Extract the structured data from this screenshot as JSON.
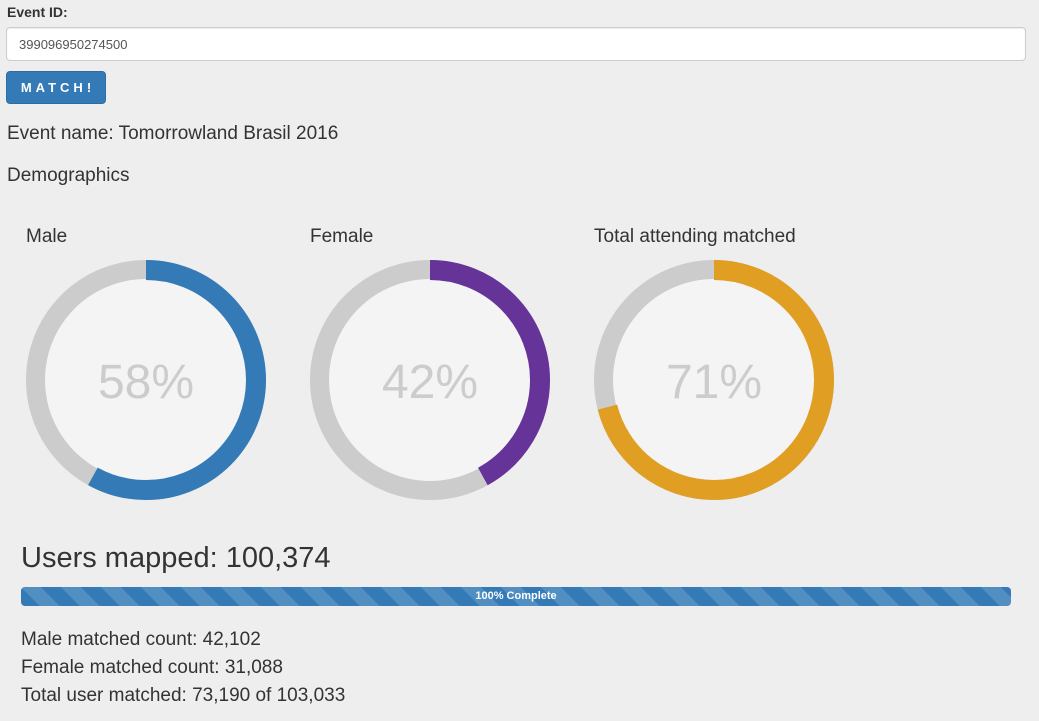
{
  "form": {
    "event_id_label": "Event ID:",
    "event_id_value": "399096950274500",
    "match_button_label": "MATCH!"
  },
  "event": {
    "name_line": "Event name: Tomorrowland Brasil 2016",
    "section_heading": "Demographics"
  },
  "gauges": [
    {
      "title": "Male",
      "percent": 58,
      "percent_label": "58%",
      "color": "#337ab7"
    },
    {
      "title": "Female",
      "percent": 42,
      "percent_label": "42%",
      "color": "#663399"
    },
    {
      "title": "Total attending matched",
      "percent": 71,
      "percent_label": "71%",
      "color": "#e09e23"
    }
  ],
  "summary": {
    "users_mapped": "Users mapped: 100,374",
    "progress_percent": 100,
    "progress_label": "100% Complete",
    "male_count": "Male matched count: 42,102",
    "female_count": "Female matched count: 31,088",
    "total_matched": "Total user matched: 73,190 of 103,033"
  },
  "colors": {
    "track": "#cccccc",
    "gauge_inner": "#f4f4f4",
    "primary": "#337ab7"
  }
}
